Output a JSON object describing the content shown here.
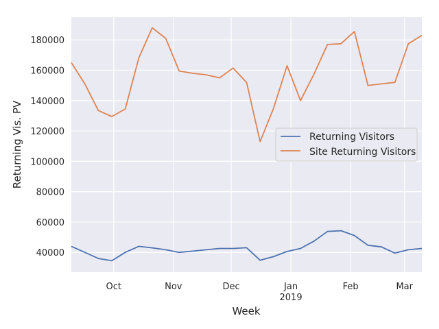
{
  "chart_data": {
    "type": "line",
    "title": "",
    "xlabel": "Week",
    "ylabel": "Returning Vis. PV",
    "x": [
      "2018-09-09",
      "2018-09-16",
      "2018-09-23",
      "2018-09-30",
      "2018-10-07",
      "2018-10-14",
      "2018-10-21",
      "2018-10-28",
      "2018-11-04",
      "2018-11-11",
      "2018-11-18",
      "2018-11-25",
      "2018-12-02",
      "2018-12-09",
      "2018-12-16",
      "2018-12-23",
      "2018-12-30",
      "2019-01-06",
      "2019-01-13",
      "2019-01-20",
      "2019-01-27",
      "2019-02-03",
      "2019-02-10",
      "2019-02-17",
      "2019-02-24",
      "2019-03-03",
      "2019-03-10"
    ],
    "x_ticks": [
      {
        "date": "2018-10-01",
        "label": "Oct",
        "sublabel": ""
      },
      {
        "date": "2018-11-01",
        "label": "Nov",
        "sublabel": ""
      },
      {
        "date": "2018-12-01",
        "label": "Dec",
        "sublabel": ""
      },
      {
        "date": "2019-01-01",
        "label": "Jan",
        "sublabel": "2019"
      },
      {
        "date": "2019-02-01",
        "label": "Feb",
        "sublabel": ""
      },
      {
        "date": "2019-03-01",
        "label": "Mar",
        "sublabel": ""
      }
    ],
    "xlim": [
      "2018-09-09",
      "2019-03-10"
    ],
    "ylim": [
      27000,
      195000
    ],
    "y_ticks": [
      40000,
      60000,
      80000,
      100000,
      120000,
      140000,
      160000,
      180000
    ],
    "y_tick_labels": [
      "40000",
      "60000",
      "80000",
      "100000",
      "120000",
      "140000",
      "160000",
      "180000"
    ],
    "grid": true,
    "legend_position": "center-right",
    "series": [
      {
        "name": "Returning Visitors",
        "color": "#4c72b0",
        "values": [
          44000,
          40000,
          36000,
          34500,
          40000,
          44000,
          43000,
          41700,
          40000,
          40800,
          41700,
          42600,
          42600,
          43100,
          34800,
          37200,
          40600,
          42600,
          47400,
          53800,
          54300,
          51100,
          44700,
          43600,
          39500,
          41700,
          42600
        ]
      },
      {
        "name": "Site Returning Visitors",
        "color": "#dd8452",
        "values": [
          165000,
          151000,
          133500,
          129500,
          134500,
          168000,
          188000,
          181000,
          159500,
          158000,
          157000,
          155000,
          161500,
          152000,
          113000,
          135000,
          163000,
          140000,
          157500,
          177000,
          177500,
          185500,
          150000,
          151000,
          152000,
          177500,
          183000
        ]
      }
    ]
  }
}
